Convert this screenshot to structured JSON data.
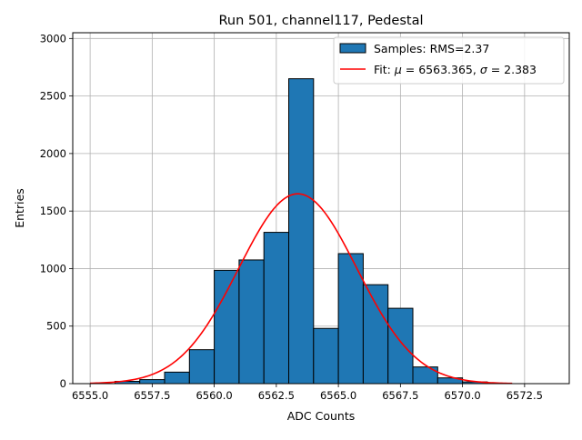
{
  "chart_data": {
    "type": "bar",
    "title": "Run 501, channel117, Pedestal",
    "xlabel": "ADC Counts",
    "ylabel": "Entries",
    "xlim": [
      6554.3,
      6574.3
    ],
    "ylim": [
      0,
      3050
    ],
    "grid": true,
    "legend_position": "top-right",
    "x_ticks": [
      6555.0,
      6557.5,
      6560.0,
      6562.5,
      6565.0,
      6567.5,
      6570.0,
      6572.5
    ],
    "x_tick_labels": [
      "6555.0",
      "6557.5",
      "6560.0",
      "6562.5",
      "6565.0",
      "6567.5",
      "6570.0",
      "6572.5"
    ],
    "y_ticks": [
      0,
      500,
      1000,
      1500,
      2000,
      2500,
      3000
    ],
    "y_tick_labels": [
      "0",
      "500",
      "1000",
      "1500",
      "2000",
      "2500",
      "3000"
    ],
    "bin_edges": [
      6556,
      6557,
      6558,
      6559,
      6560,
      6561,
      6562,
      6563,
      6564,
      6565,
      6566,
      6567,
      6568,
      6569,
      6570,
      6571
    ],
    "series": [
      {
        "name": "Samples: RMS=2.37",
        "kind": "histogram",
        "values": [
          20,
          35,
          100,
          295,
          985,
          1075,
          1315,
          2650,
          480,
          1130,
          860,
          655,
          145,
          50,
          15
        ],
        "color": "#1f77b4",
        "edge_color": "#000000"
      },
      {
        "name": "Fit: μ = 6563.365, σ = 2.383",
        "name_parts": {
          "prefix": "Fit: ",
          "mu_symbol": "μ",
          "mu_text": " = 6563.365, ",
          "sigma_symbol": "σ",
          "sigma_text": " = 2.383"
        },
        "kind": "gaussian",
        "mu": 6563.365,
        "sigma": 2.383,
        "amplitude": 1650,
        "x_range": [
          6555,
          6572
        ],
        "color": "#ff0000"
      }
    ]
  }
}
